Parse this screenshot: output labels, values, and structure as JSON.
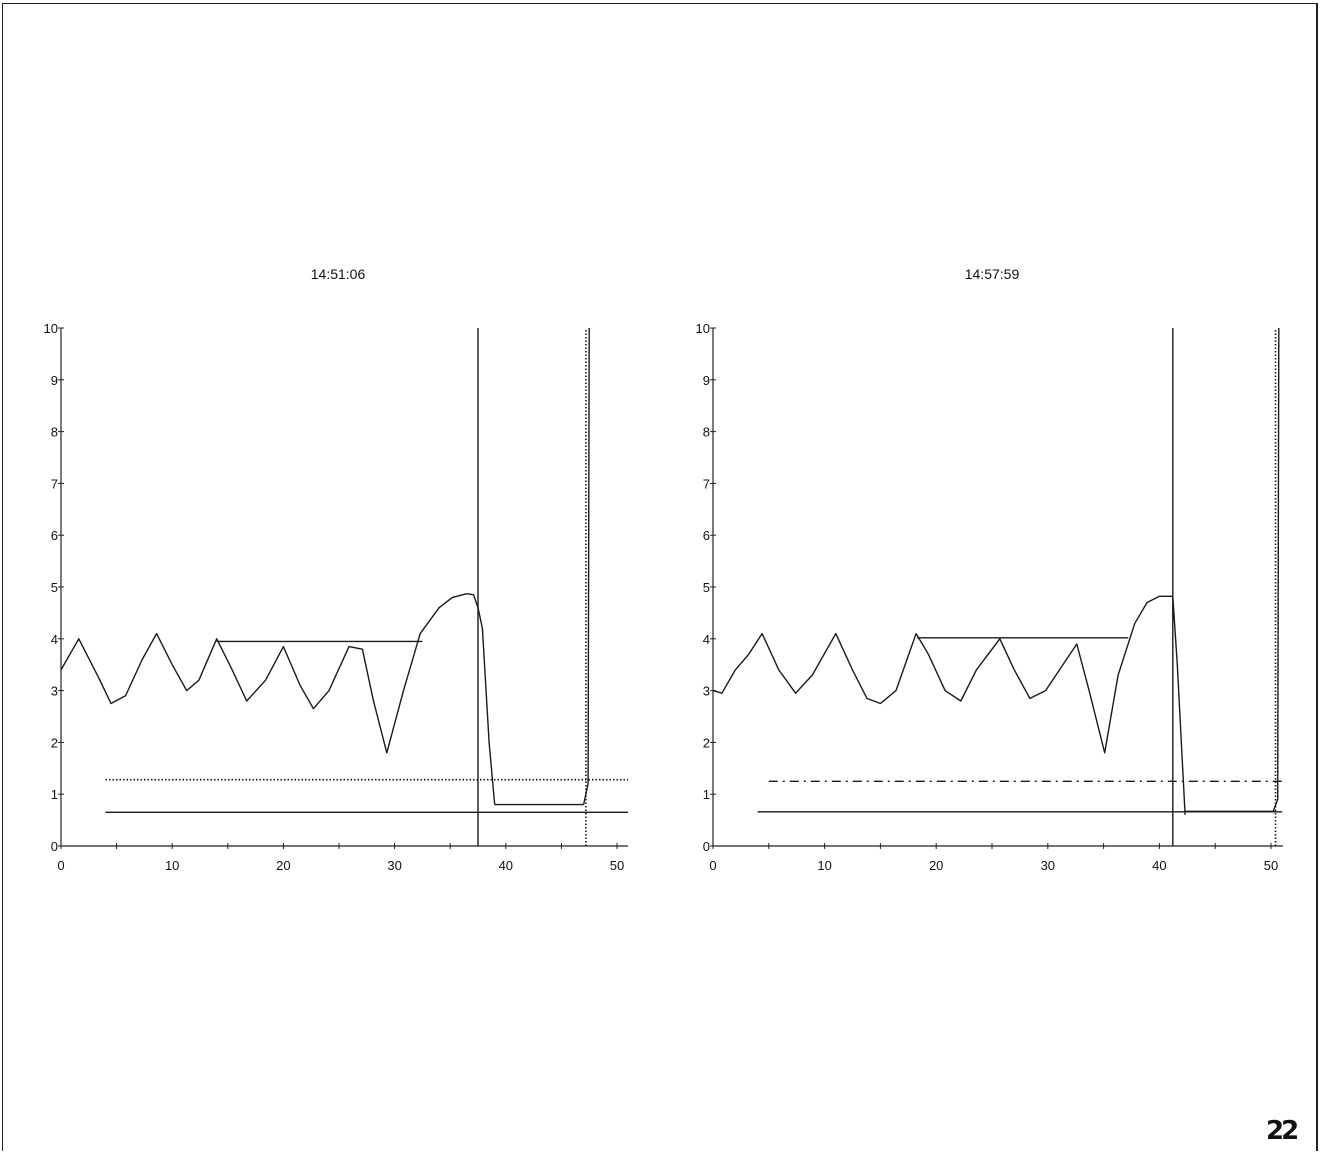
{
  "page_number": "22",
  "chart_data": [
    {
      "type": "line",
      "title": "14:51:06",
      "xlim": [
        0,
        51
      ],
      "ylim": [
        0,
        10
      ],
      "x_ticks": [
        "0",
        "10",
        "20",
        "30",
        "40",
        "50"
      ],
      "y_ticks": [
        "0",
        "1",
        "2",
        "3",
        "4",
        "5",
        "6",
        "7",
        "8",
        "9",
        "10"
      ],
      "series": [
        {
          "style": "solid",
          "x": [
            0,
            1.6,
            3.5,
            4.5,
            5.8,
            7.3,
            8.6,
            10,
            11.3,
            12.4,
            14,
            15.4,
            16.7,
            18.4,
            20,
            21.5,
            22.7,
            24.1,
            25.9,
            27.1,
            28.1,
            29.3,
            30.8,
            32.3,
            34,
            35.2,
            36.5,
            37.1,
            37.5,
            37.9,
            38.5,
            39
          ],
          "y": [
            3.4,
            4.0,
            3.2,
            2.75,
            2.9,
            3.6,
            4.1,
            3.5,
            3.0,
            3.2,
            4.0,
            3.4,
            2.8,
            3.2,
            3.85,
            3.1,
            2.65,
            3.0,
            3.85,
            3.8,
            2.8,
            1.8,
            3.0,
            4.1,
            4.6,
            4.8,
            4.87,
            4.85,
            4.6,
            4.2,
            2.0,
            0.8
          ]
        },
        {
          "style": "solid",
          "x": [
            14,
            32.5
          ],
          "y": [
            3.95,
            3.95
          ]
        },
        {
          "style": "solid",
          "x": [
            39,
            47
          ],
          "y": [
            0.8,
            0.8
          ]
        },
        {
          "style": "solid",
          "x": [
            47,
            47.4,
            47.5
          ],
          "y": [
            0.8,
            1.2,
            10
          ]
        },
        {
          "style": "solid",
          "x": [
            4,
            51
          ],
          "y": [
            0.65,
            0.65
          ]
        },
        {
          "style": "dotted",
          "x": [
            4,
            51
          ],
          "y": [
            1.28,
            1.28
          ]
        },
        {
          "style": "solid",
          "x": [
            37.5,
            37.5
          ],
          "y": [
            0,
            10
          ]
        },
        {
          "style": "dotted",
          "x": [
            47.2,
            47.2
          ],
          "y": [
            0,
            10
          ]
        }
      ]
    },
    {
      "type": "line",
      "title": "14:57:59",
      "xlim": [
        0,
        51
      ],
      "ylim": [
        0,
        10
      ],
      "x_ticks": [
        "0",
        "10",
        "20",
        "30",
        "40",
        "50"
      ],
      "y_ticks": [
        "0",
        "1",
        "2",
        "3",
        "4",
        "5",
        "6",
        "7",
        "8",
        "9",
        "10"
      ],
      "series": [
        {
          "style": "solid",
          "x": [
            0,
            0.8,
            2,
            3.2,
            4.4,
            5.9,
            7.4,
            8.9,
            11,
            12.5,
            13.8,
            15,
            16.4,
            18.2,
            19.3,
            20.8,
            22.2,
            23.6,
            25.7,
            27,
            28.4,
            29.8,
            32.6,
            33.7,
            35.1,
            36.3,
            37.8,
            38.9,
            40,
            41.2,
            41.6,
            42.3
          ],
          "y": [
            3.0,
            2.95,
            3.4,
            3.7,
            4.1,
            3.4,
            2.95,
            3.3,
            4.1,
            3.4,
            2.85,
            2.75,
            3.0,
            4.1,
            3.7,
            3.0,
            2.8,
            3.4,
            4.0,
            3.4,
            2.85,
            3.0,
            3.9,
            3.0,
            1.8,
            3.3,
            4.3,
            4.7,
            4.82,
            4.82,
            3.5,
            0.6
          ]
        },
        {
          "style": "solid",
          "x": [
            18.3,
            37.2
          ],
          "y": [
            4.02,
            4.02
          ]
        },
        {
          "style": "solid",
          "x": [
            42.3,
            50.2
          ],
          "y": [
            0.67,
            0.67
          ]
        },
        {
          "style": "solid",
          "x": [
            50.2,
            50.6,
            50.7
          ],
          "y": [
            0.67,
            0.9,
            10
          ]
        },
        {
          "style": "solid",
          "x": [
            4,
            51
          ],
          "y": [
            0.66,
            0.66
          ]
        },
        {
          "style": "dashdot",
          "x": [
            5,
            51
          ],
          "y": [
            1.25,
            1.25
          ]
        },
        {
          "style": "solid",
          "x": [
            41.2,
            41.2
          ],
          "y": [
            0,
            10
          ]
        },
        {
          "style": "dotted",
          "x": [
            50.4,
            50.4
          ],
          "y": [
            0,
            10
          ]
        }
      ]
    }
  ]
}
